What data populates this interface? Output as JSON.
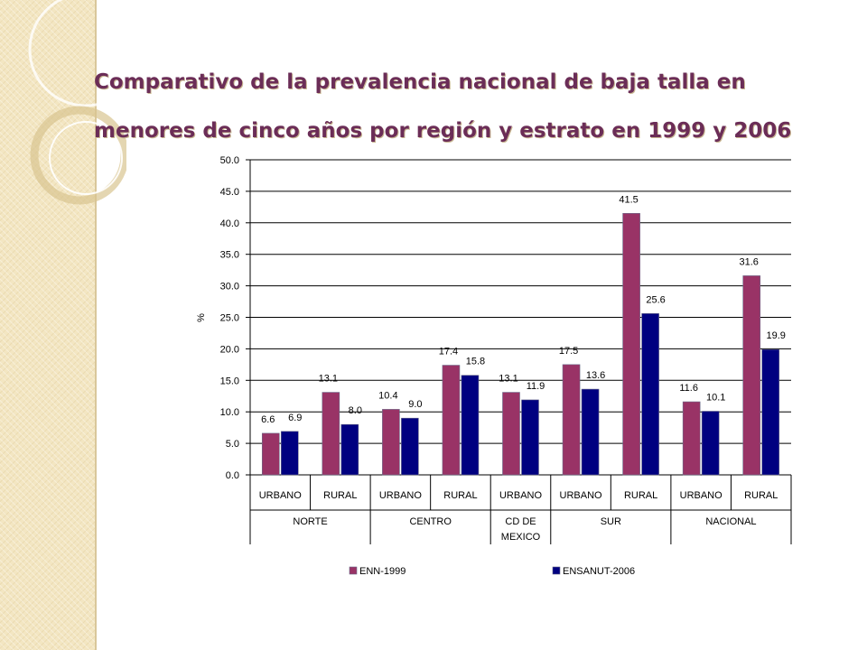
{
  "slide": {
    "title_line1": "Comparativo de la prevalencia nacional de baja talla en",
    "title_line2": "menores de cinco años por región y estrato en 1999 y 2006"
  },
  "colors": {
    "title": "#6b2d57",
    "side_band": "#f3e6c2",
    "enn_1999": "#993366",
    "ensanut_2006": "#000080"
  },
  "chart_data": {
    "type": "bar",
    "title": "",
    "xlabel": "",
    "ylabel": "%",
    "ylim": [
      0,
      50
    ],
    "yticks": [
      "0.0",
      "5.0",
      "10.0",
      "15.0",
      "20.0",
      "25.0",
      "30.0",
      "35.0",
      "40.0",
      "45.0",
      "50.0"
    ],
    "grid": true,
    "legend": "bottom",
    "categories": [
      "URBANO",
      "RURAL",
      "URBANO",
      "RURAL",
      "URBANO",
      "URBANO",
      "RURAL",
      "URBANO",
      "RURAL"
    ],
    "groups": [
      {
        "name": "NORTE",
        "count": 2
      },
      {
        "name": "CENTRO",
        "count": 2
      },
      {
        "name": "CD DE MEXICO",
        "count": 1
      },
      {
        "name": "SUR",
        "count": 2
      },
      {
        "name": "NACIONAL",
        "count": 2
      }
    ],
    "series": [
      {
        "name": "ENN-1999",
        "color": "#993366",
        "values": [
          6.6,
          13.1,
          10.4,
          17.4,
          13.1,
          17.5,
          41.5,
          11.6,
          31.6
        ],
        "labels": [
          "6.6",
          "13.1",
          "10.4",
          "17.4",
          "13.1",
          "17.5",
          "41.5",
          "11.6",
          "31.6"
        ]
      },
      {
        "name": "ENSANUT-2006",
        "color": "#000080",
        "values": [
          6.9,
          8.0,
          9.0,
          15.8,
          11.9,
          13.6,
          25.6,
          10.1,
          19.9
        ],
        "labels": [
          "6.9",
          "8.0",
          "9.0",
          "15.8",
          "11.9",
          "13.6",
          "25.6",
          "10.1",
          "19.9"
        ]
      }
    ]
  }
}
